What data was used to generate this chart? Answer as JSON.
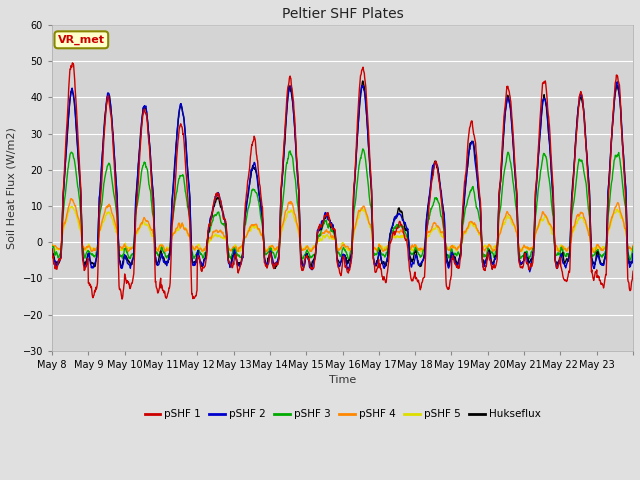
{
  "title": "Peltier SHF Plates",
  "xlabel": "Time",
  "ylabel": "Soil Heat Flux (W/m2)",
  "ylim": [
    -30,
    60
  ],
  "yticks": [
    -30,
    -20,
    -10,
    0,
    10,
    20,
    30,
    40,
    50,
    60
  ],
  "background_color": "#e0e0e0",
  "plot_bg_color": "#d4d4d4",
  "colors": {
    "pSHF1": "#cc0000",
    "pSHF2": "#0000cc",
    "pSHF3": "#00aa00",
    "pSHF4": "#ff8800",
    "pSHF5": "#dddd00",
    "Hukseflux": "#000000"
  },
  "legend_labels": [
    "pSHF 1",
    "pSHF 2",
    "pSHF 3",
    "pSHF 4",
    "pSHF 5",
    "Hukseflux"
  ],
  "annotation_text": "VR_met",
  "annotation_color": "#cc0000",
  "annotation_bg": "#ffffcc",
  "annotation_border": "#888800",
  "days": 16,
  "x_tick_labels": [
    "May 8",
    "May 9",
    "May 10",
    "May 11",
    "May 12",
    "May 13",
    "May 14",
    "May 15",
    "May 16",
    "May 17",
    "May 18",
    "May 19",
    "May 20",
    "May 21",
    "May 22",
    "May 23"
  ]
}
